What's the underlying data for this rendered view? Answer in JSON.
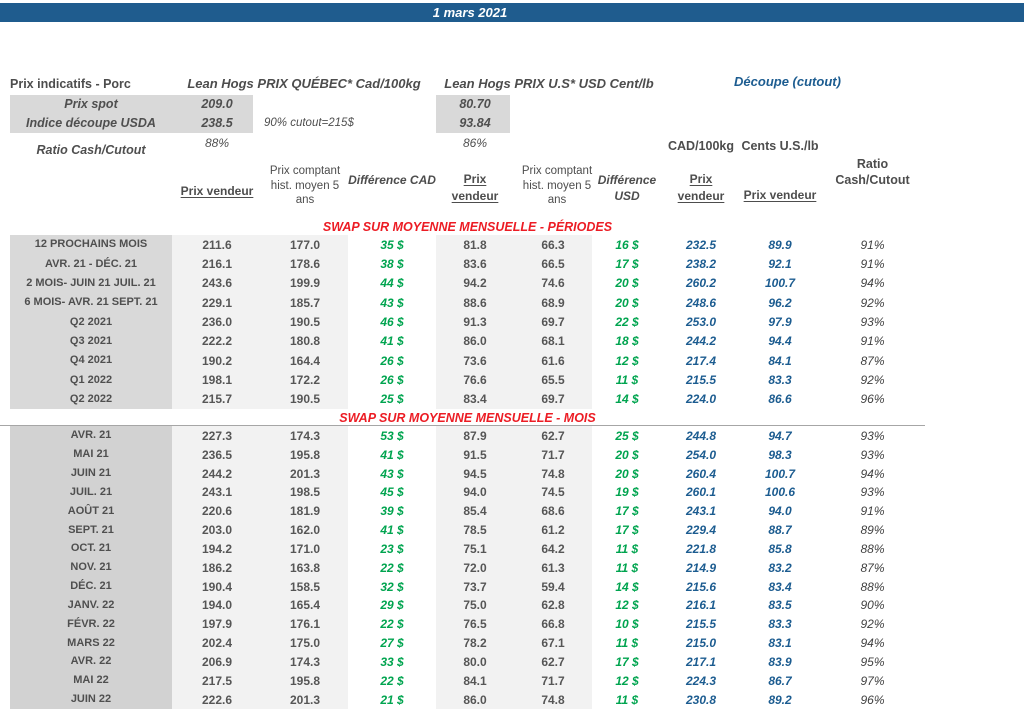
{
  "banner": {
    "date": "1 mars 2021"
  },
  "top": {
    "title_left": "Prix indicatifs - Porc",
    "quebec_title": "Lean Hogs PRIX QUÉBEC* Cad/100kg",
    "us_title": "Lean Hogs PRIX U.S* USD Cent/lb",
    "cutout_title": "Découpe (cutout)",
    "spot_label": "Prix spot",
    "spot_cad": "209.0",
    "spot_usd": "80.70",
    "indice_label": "Indice découpe USDA",
    "indice_cad": "238.5",
    "indice_usd": "93.84",
    "cutout_note": "90% cutout=215$",
    "ratio_label": "Ratio Cash/Cutout",
    "ratio_cad": "88%",
    "ratio_usd": "86%"
  },
  "columns": {
    "prix_vendeur": "Prix vendeur",
    "prix_comptant": "Prix comptant hist. moyen 5 ans",
    "difference_cad": "Différence CAD",
    "difference_usd": "Différence USD",
    "cad_unit": "CAD/100kg",
    "us_unit": "Cents U.S./lb",
    "ratio_header": "Ratio Cash/Cutout"
  },
  "colors": {
    "banner_blue": "#1F5C8E",
    "value_blue": "#1C5C90",
    "diff_green": "#00A44F",
    "section_red": "#EC1C24",
    "label_gray_bg": "#D9D9D9",
    "value_gray_bg": "#F2F2F2"
  },
  "sections": [
    {
      "title": "SWAP SUR MOYENNE MENSUELLE - PÉRIODES",
      "rows": [
        {
          "label": "12 PROCHAINS MOIS",
          "cad_vendeur": "211.6",
          "cad_hist": "177.0",
          "diff_cad": "35 $",
          "usd_vendeur": "81.8",
          "usd_hist": "66.3",
          "diff_usd": "16 $",
          "swap_cad": "232.5",
          "swap_us": "89.9",
          "ratio": "91%"
        },
        {
          "label": "AVR. 21 -  DÉC. 21",
          "cad_vendeur": "216.1",
          "cad_hist": "178.6",
          "diff_cad": "38 $",
          "usd_vendeur": "83.6",
          "usd_hist": "66.5",
          "diff_usd": "17 $",
          "swap_cad": "238.2",
          "swap_us": "92.1",
          "ratio": "91%"
        },
        {
          "label": "2 MOIS- JUIN 21 JUIL. 21",
          "cad_vendeur": "243.6",
          "cad_hist": "199.9",
          "diff_cad": "44 $",
          "usd_vendeur": "94.2",
          "usd_hist": "74.6",
          "diff_usd": "20 $",
          "swap_cad": "260.2",
          "swap_us": "100.7",
          "ratio": "94%"
        },
        {
          "label": "6 MOIS- AVR. 21 SEPT. 21",
          "cad_vendeur": "229.1",
          "cad_hist": "185.7",
          "diff_cad": "43 $",
          "usd_vendeur": "88.6",
          "usd_hist": "68.9",
          "diff_usd": "20 $",
          "swap_cad": "248.6",
          "swap_us": "96.2",
          "ratio": "92%"
        },
        {
          "label": "Q2 2021",
          "cad_vendeur": "236.0",
          "cad_hist": "190.5",
          "diff_cad": "46 $",
          "usd_vendeur": "91.3",
          "usd_hist": "69.7",
          "diff_usd": "22 $",
          "swap_cad": "253.0",
          "swap_us": "97.9",
          "ratio": "93%"
        },
        {
          "label": "Q3 2021",
          "cad_vendeur": "222.2",
          "cad_hist": "180.8",
          "diff_cad": "41 $",
          "usd_vendeur": "86.0",
          "usd_hist": "68.1",
          "diff_usd": "18 $",
          "swap_cad": "244.2",
          "swap_us": "94.4",
          "ratio": "91%"
        },
        {
          "label": "Q4 2021",
          "cad_vendeur": "190.2",
          "cad_hist": "164.4",
          "diff_cad": "26 $",
          "usd_vendeur": "73.6",
          "usd_hist": "61.6",
          "diff_usd": "12 $",
          "swap_cad": "217.4",
          "swap_us": "84.1",
          "ratio": "87%"
        },
        {
          "label": "Q1 2022",
          "cad_vendeur": "198.1",
          "cad_hist": "172.2",
          "diff_cad": "26 $",
          "usd_vendeur": "76.6",
          "usd_hist": "65.5",
          "diff_usd": "11 $",
          "swap_cad": "215.5",
          "swap_us": "83.3",
          "ratio": "92%"
        },
        {
          "label": "Q2 2022",
          "cad_vendeur": "215.7",
          "cad_hist": "190.5",
          "diff_cad": "25 $",
          "usd_vendeur": "83.4",
          "usd_hist": "69.7",
          "diff_usd": "14 $",
          "swap_cad": "224.0",
          "swap_us": "86.6",
          "ratio": "96%"
        }
      ]
    },
    {
      "title": "SWAP SUR MOYENNE MENSUELLE - MOIS",
      "rows": [
        {
          "label": "AVR. 21",
          "cad_vendeur": "227.3",
          "cad_hist": "174.3",
          "diff_cad": "53 $",
          "usd_vendeur": "87.9",
          "usd_hist": "62.7",
          "diff_usd": "25 $",
          "swap_cad": "244.8",
          "swap_us": "94.7",
          "ratio": "93%"
        },
        {
          "label": "MAI 21",
          "cad_vendeur": "236.5",
          "cad_hist": "195.8",
          "diff_cad": "41 $",
          "usd_vendeur": "91.5",
          "usd_hist": "71.7",
          "diff_usd": "20 $",
          "swap_cad": "254.0",
          "swap_us": "98.3",
          "ratio": "93%"
        },
        {
          "label": "JUIN 21",
          "cad_vendeur": "244.2",
          "cad_hist": "201.3",
          "diff_cad": "43 $",
          "usd_vendeur": "94.5",
          "usd_hist": "74.8",
          "diff_usd": "20 $",
          "swap_cad": "260.4",
          "swap_us": "100.7",
          "ratio": "94%"
        },
        {
          "label": "JUIL. 21",
          "cad_vendeur": "243.1",
          "cad_hist": "198.5",
          "diff_cad": "45 $",
          "usd_vendeur": "94.0",
          "usd_hist": "74.5",
          "diff_usd": "19 $",
          "swap_cad": "260.1",
          "swap_us": "100.6",
          "ratio": "93%"
        },
        {
          "label": "AOÛT 21",
          "cad_vendeur": "220.6",
          "cad_hist": "181.9",
          "diff_cad": "39 $",
          "usd_vendeur": "85.4",
          "usd_hist": "68.6",
          "diff_usd": "17 $",
          "swap_cad": "243.1",
          "swap_us": "94.0",
          "ratio": "91%"
        },
        {
          "label": "SEPT. 21",
          "cad_vendeur": "203.0",
          "cad_hist": "162.0",
          "diff_cad": "41 $",
          "usd_vendeur": "78.5",
          "usd_hist": "61.2",
          "diff_usd": "17 $",
          "swap_cad": "229.4",
          "swap_us": "88.7",
          "ratio": "89%"
        },
        {
          "label": "OCT. 21",
          "cad_vendeur": "194.2",
          "cad_hist": "171.0",
          "diff_cad": "23 $",
          "usd_vendeur": "75.1",
          "usd_hist": "64.2",
          "diff_usd": "11 $",
          "swap_cad": "221.8",
          "swap_us": "85.8",
          "ratio": "88%"
        },
        {
          "label": "NOV. 21",
          "cad_vendeur": "186.2",
          "cad_hist": "163.8",
          "diff_cad": "22 $",
          "usd_vendeur": "72.0",
          "usd_hist": "61.3",
          "diff_usd": "11 $",
          "swap_cad": "214.9",
          "swap_us": "83.2",
          "ratio": "87%"
        },
        {
          "label": "DÉC. 21",
          "cad_vendeur": "190.4",
          "cad_hist": "158.5",
          "diff_cad": "32 $",
          "usd_vendeur": "73.7",
          "usd_hist": "59.4",
          "diff_usd": "14 $",
          "swap_cad": "215.6",
          "swap_us": "83.4",
          "ratio": "88%"
        },
        {
          "label": "JANV. 22",
          "cad_vendeur": "194.0",
          "cad_hist": "165.4",
          "diff_cad": "29 $",
          "usd_vendeur": "75.0",
          "usd_hist": "62.8",
          "diff_usd": "12 $",
          "swap_cad": "216.1",
          "swap_us": "83.5",
          "ratio": "90%"
        },
        {
          "label": "FÉVR. 22",
          "cad_vendeur": "197.9",
          "cad_hist": "176.1",
          "diff_cad": "22 $",
          "usd_vendeur": "76.5",
          "usd_hist": "66.8",
          "diff_usd": "10 $",
          "swap_cad": "215.5",
          "swap_us": "83.3",
          "ratio": "92%"
        },
        {
          "label": "MARS 22",
          "cad_vendeur": "202.4",
          "cad_hist": "175.0",
          "diff_cad": "27 $",
          "usd_vendeur": "78.2",
          "usd_hist": "67.1",
          "diff_usd": "11 $",
          "swap_cad": "215.0",
          "swap_us": "83.1",
          "ratio": "94%"
        },
        {
          "label": "AVR. 22",
          "cad_vendeur": "206.9",
          "cad_hist": "174.3",
          "diff_cad": "33 $",
          "usd_vendeur": "80.0",
          "usd_hist": "62.7",
          "diff_usd": "17 $",
          "swap_cad": "217.1",
          "swap_us": "83.9",
          "ratio": "95%"
        },
        {
          "label": "MAI 22",
          "cad_vendeur": "217.5",
          "cad_hist": "195.8",
          "diff_cad": "22 $",
          "usd_vendeur": "84.1",
          "usd_hist": "71.7",
          "diff_usd": "12 $",
          "swap_cad": "224.3",
          "swap_us": "86.7",
          "ratio": "97%"
        },
        {
          "label": "JUIN 22",
          "cad_vendeur": "222.6",
          "cad_hist": "201.3",
          "diff_cad": "21 $",
          "usd_vendeur": "86.0",
          "usd_hist": "74.8",
          "diff_usd": "11 $",
          "swap_cad": "230.8",
          "swap_us": "89.2",
          "ratio": "96%"
        }
      ]
    }
  ]
}
